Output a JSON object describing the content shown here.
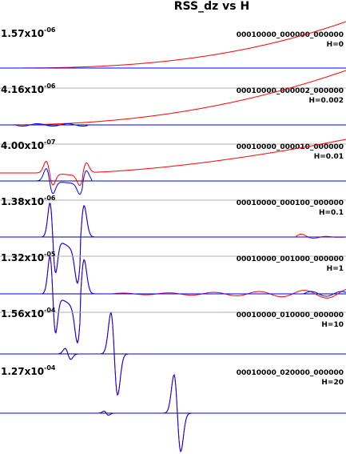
{
  "title": "RSS_dz vs H",
  "chart_data": {
    "type": "line",
    "title": "RSS_dz vs H",
    "series_colors": {
      "red_trace": "#ff0000",
      "blue_trace": "#0000ff"
    },
    "panels": [
      {
        "scale_mantissa": "1.57",
        "scale_base": "x10",
        "scale_exp": "-06",
        "run_id": "00010000_000000_000000",
        "h_label": "H=0",
        "h": 0
      },
      {
        "scale_mantissa": "4.16",
        "scale_base": "x10",
        "scale_exp": "-06",
        "run_id": "00010000_000002_000000",
        "h_label": "H=0.002",
        "h": 0.002
      },
      {
        "scale_mantissa": "4.00",
        "scale_base": "x10",
        "scale_exp": "-07",
        "run_id": "00010000_000010_000000",
        "h_label": "H=0.01",
        "h": 0.01
      },
      {
        "scale_mantissa": "1.38",
        "scale_base": "x10",
        "scale_exp": "-06",
        "run_id": "00010000_000100_000000",
        "h_label": "H=0.1",
        "h": 0.1
      },
      {
        "scale_mantissa": "1.32",
        "scale_base": "x10",
        "scale_exp": "-05",
        "run_id": "00010000_001000_000000",
        "h_label": "H=1",
        "h": 1
      },
      {
        "scale_mantissa": "1.56",
        "scale_base": "x10",
        "scale_exp": "-04",
        "run_id": "00010000_010000_000000",
        "h_label": "H=10",
        "h": 10
      },
      {
        "scale_mantissa": "1.27",
        "scale_base": "x10",
        "scale_exp": "-04",
        "run_id": "00010000_020000_000000",
        "h_label": "H=20",
        "h": 20
      }
    ]
  }
}
